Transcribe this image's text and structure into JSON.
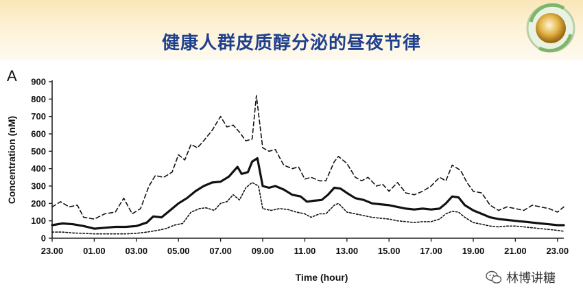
{
  "header": {
    "title": "健康人群皮质醇分泌的昼夜节律",
    "logo_icon": "globe-logo-icon"
  },
  "panel_label": "A",
  "watermark": {
    "text": "林博讲糖",
    "icon": "wechat-icon"
  },
  "colors": {
    "title": "#1f3f8f",
    "line": "#111111",
    "header_bg": "#fdf2d6"
  },
  "chart_data": {
    "type": "line",
    "xlabel": "Time (hour)",
    "ylabel": "Concentration (nM)",
    "ylim": [
      0,
      900
    ],
    "xlim": [
      23,
      47.3
    ],
    "grid": false,
    "legend": "none",
    "yticks": [
      0,
      100,
      200,
      300,
      400,
      500,
      600,
      700,
      800,
      900
    ],
    "xticks": [
      {
        "label": "23.00",
        "x": 23
      },
      {
        "label": "01.00",
        "x": 25
      },
      {
        "label": "03.00",
        "x": 27
      },
      {
        "label": "05.00",
        "x": 29
      },
      {
        "label": "07.00",
        "x": 31
      },
      {
        "label": "09.00",
        "x": 33
      },
      {
        "label": "11.00",
        "x": 35
      },
      {
        "label": "13.00",
        "x": 37
      },
      {
        "label": "15.00",
        "x": 39
      },
      {
        "label": "17.00",
        "x": 41
      },
      {
        "label": "19.00",
        "x": 43
      },
      {
        "label": "21.00",
        "x": 45
      },
      {
        "label": "23.00",
        "x": 47
      }
    ],
    "series": [
      {
        "style": "dashed",
        "points": [
          [
            23,
            180
          ],
          [
            23.4,
            210
          ],
          [
            23.8,
            180
          ],
          [
            24.2,
            190
          ],
          [
            24.5,
            120
          ],
          [
            25,
            110
          ],
          [
            25.5,
            140
          ],
          [
            26,
            150
          ],
          [
            26.4,
            230
          ],
          [
            26.8,
            140
          ],
          [
            27.2,
            170
          ],
          [
            27.6,
            300
          ],
          [
            27.9,
            360
          ],
          [
            28.3,
            350
          ],
          [
            28.7,
            380
          ],
          [
            29,
            480
          ],
          [
            29.3,
            450
          ],
          [
            29.6,
            540
          ],
          [
            29.9,
            520
          ],
          [
            30.2,
            560
          ],
          [
            30.6,
            620
          ],
          [
            31,
            700
          ],
          [
            31.3,
            640
          ],
          [
            31.6,
            650
          ],
          [
            31.9,
            610
          ],
          [
            32.2,
            560
          ],
          [
            32.5,
            570
          ],
          [
            32.7,
            820
          ],
          [
            33,
            520
          ],
          [
            33.3,
            500
          ],
          [
            33.6,
            510
          ],
          [
            34,
            420
          ],
          [
            34.4,
            400
          ],
          [
            34.7,
            410
          ],
          [
            35,
            340
          ],
          [
            35.3,
            350
          ],
          [
            35.7,
            330
          ],
          [
            36,
            330
          ],
          [
            36.4,
            440
          ],
          [
            36.6,
            470
          ],
          [
            37,
            430
          ],
          [
            37.4,
            350
          ],
          [
            37.7,
            330
          ],
          [
            38,
            350
          ],
          [
            38.4,
            300
          ],
          [
            38.7,
            310
          ],
          [
            39,
            270
          ],
          [
            39.4,
            320
          ],
          [
            39.8,
            260
          ],
          [
            40.2,
            250
          ],
          [
            40.6,
            270
          ],
          [
            41,
            300
          ],
          [
            41.4,
            350
          ],
          [
            41.7,
            330
          ],
          [
            42,
            420
          ],
          [
            42.4,
            390
          ],
          [
            42.7,
            320
          ],
          [
            43,
            270
          ],
          [
            43.4,
            260
          ],
          [
            43.8,
            190
          ],
          [
            44.2,
            160
          ],
          [
            44.6,
            180
          ],
          [
            45,
            170
          ],
          [
            45.4,
            160
          ],
          [
            45.8,
            190
          ],
          [
            46.2,
            180
          ],
          [
            46.6,
            170
          ],
          [
            47,
            150
          ],
          [
            47.3,
            180
          ]
        ]
      },
      {
        "style": "solid",
        "points": [
          [
            23,
            75
          ],
          [
            23.5,
            85
          ],
          [
            24,
            80
          ],
          [
            24.5,
            70
          ],
          [
            25,
            55
          ],
          [
            25.5,
            60
          ],
          [
            26,
            65
          ],
          [
            26.5,
            65
          ],
          [
            27,
            70
          ],
          [
            27.5,
            90
          ],
          [
            27.8,
            125
          ],
          [
            28.2,
            120
          ],
          [
            28.6,
            160
          ],
          [
            29,
            200
          ],
          [
            29.4,
            230
          ],
          [
            29.8,
            270
          ],
          [
            30.2,
            300
          ],
          [
            30.6,
            320
          ],
          [
            31,
            325
          ],
          [
            31.4,
            355
          ],
          [
            31.8,
            410
          ],
          [
            32,
            370
          ],
          [
            32.3,
            380
          ],
          [
            32.5,
            440
          ],
          [
            32.75,
            460
          ],
          [
            33,
            300
          ],
          [
            33.3,
            290
          ],
          [
            33.6,
            300
          ],
          [
            34,
            280
          ],
          [
            34.4,
            250
          ],
          [
            34.8,
            240
          ],
          [
            35.1,
            210
          ],
          [
            35.4,
            215
          ],
          [
            35.8,
            220
          ],
          [
            36.1,
            250
          ],
          [
            36.4,
            290
          ],
          [
            36.7,
            285
          ],
          [
            37,
            260
          ],
          [
            37.4,
            230
          ],
          [
            37.8,
            220
          ],
          [
            38.2,
            200
          ],
          [
            38.6,
            195
          ],
          [
            39,
            190
          ],
          [
            39.4,
            180
          ],
          [
            39.8,
            170
          ],
          [
            40.2,
            165
          ],
          [
            40.6,
            170
          ],
          [
            41,
            165
          ],
          [
            41.4,
            170
          ],
          [
            41.7,
            200
          ],
          [
            42,
            240
          ],
          [
            42.3,
            235
          ],
          [
            42.6,
            190
          ],
          [
            43,
            160
          ],
          [
            43.4,
            140
          ],
          [
            43.8,
            120
          ],
          [
            44.2,
            110
          ],
          [
            44.6,
            105
          ],
          [
            45,
            100
          ],
          [
            45.4,
            95
          ],
          [
            45.8,
            90
          ],
          [
            46.2,
            85
          ],
          [
            46.6,
            80
          ],
          [
            47,
            75
          ],
          [
            47.3,
            75
          ]
        ]
      },
      {
        "style": "dotted",
        "points": [
          [
            23,
            35
          ],
          [
            23.5,
            35
          ],
          [
            24,
            30
          ],
          [
            24.5,
            28
          ],
          [
            25,
            25
          ],
          [
            25.5,
            25
          ],
          [
            26,
            25
          ],
          [
            26.5,
            25
          ],
          [
            27,
            28
          ],
          [
            27.5,
            35
          ],
          [
            28,
            45
          ],
          [
            28.4,
            55
          ],
          [
            28.8,
            75
          ],
          [
            29.2,
            85
          ],
          [
            29.6,
            150
          ],
          [
            30,
            170
          ],
          [
            30.3,
            175
          ],
          [
            30.7,
            160
          ],
          [
            31,
            200
          ],
          [
            31.3,
            210
          ],
          [
            31.6,
            250
          ],
          [
            31.9,
            220
          ],
          [
            32.2,
            290
          ],
          [
            32.5,
            320
          ],
          [
            32.8,
            300
          ],
          [
            33,
            170
          ],
          [
            33.4,
            160
          ],
          [
            33.8,
            170
          ],
          [
            34.2,
            165
          ],
          [
            34.6,
            150
          ],
          [
            35,
            140
          ],
          [
            35.3,
            120
          ],
          [
            35.7,
            140
          ],
          [
            36,
            140
          ],
          [
            36.4,
            190
          ],
          [
            36.6,
            200
          ],
          [
            37,
            150
          ],
          [
            37.4,
            140
          ],
          [
            37.8,
            130
          ],
          [
            38.2,
            120
          ],
          [
            38.6,
            115
          ],
          [
            39,
            110
          ],
          [
            39.4,
            100
          ],
          [
            39.8,
            95
          ],
          [
            40.2,
            90
          ],
          [
            40.6,
            95
          ],
          [
            41,
            95
          ],
          [
            41.4,
            110
          ],
          [
            41.7,
            140
          ],
          [
            42,
            155
          ],
          [
            42.3,
            150
          ],
          [
            42.6,
            120
          ],
          [
            43,
            90
          ],
          [
            43.4,
            80
          ],
          [
            43.8,
            70
          ],
          [
            44.2,
            65
          ],
          [
            44.6,
            70
          ],
          [
            45,
            70
          ],
          [
            45.4,
            65
          ],
          [
            45.8,
            60
          ],
          [
            46.2,
            55
          ],
          [
            46.6,
            50
          ],
          [
            47,
            45
          ],
          [
            47.3,
            40
          ]
        ]
      }
    ]
  }
}
